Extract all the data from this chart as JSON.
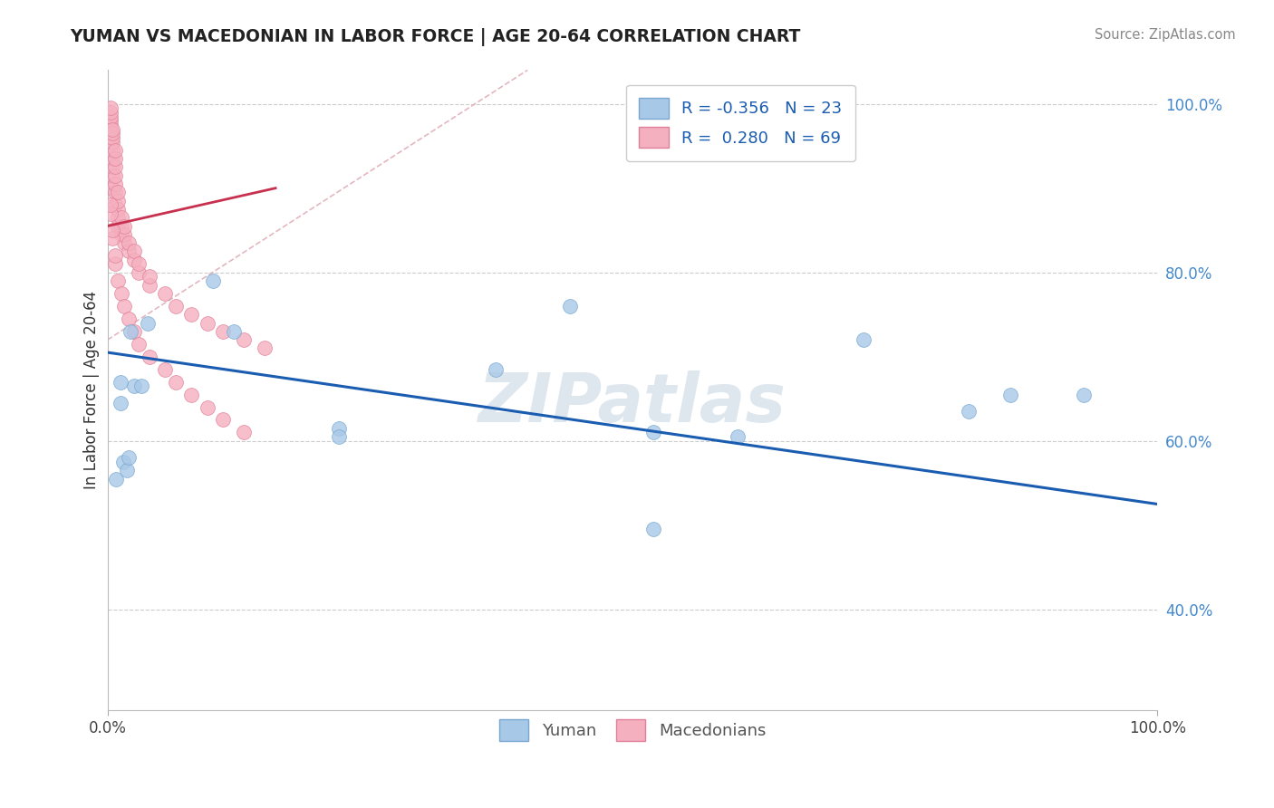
{
  "title": "YUMAN VS MACEDONIAN IN LABOR FORCE | AGE 20-64 CORRELATION CHART",
  "source": "Source: ZipAtlas.com",
  "ylabel": "In Labor Force | Age 20-64",
  "xlim": [
    0.0,
    1.0
  ],
  "ylim": [
    0.28,
    1.04
  ],
  "yticks": [
    0.4,
    0.6,
    0.8,
    1.0
  ],
  "ytick_labels": [
    "40.0%",
    "60.0%",
    "80.0%",
    "100.0%"
  ],
  "watermark": "ZIPatlas",
  "legend_r_yuman": "-0.356",
  "legend_n_yuman": "23",
  "legend_r_mac": "0.280",
  "legend_n_mac": "69",
  "yuman_color": "#a8c8e8",
  "mac_color": "#f5b0c0",
  "yuman_edge": "#78a8d0",
  "mac_edge": "#e08098",
  "blue_line_color": "#1a5cb0",
  "red_line_color": "#c83050",
  "diag_line_color": "#e0b0b8",
  "blue_line_x": [
    0.0,
    1.0
  ],
  "blue_line_y": [
    0.705,
    0.525
  ],
  "red_line_x": [
    0.0,
    0.16
  ],
  "red_line_y": [
    0.855,
    0.9
  ],
  "diag_line_x": [
    0.0,
    0.4
  ],
  "diag_line_y": [
    0.72,
    1.04
  ],
  "yuman_x": [
    0.012,
    0.012,
    0.022,
    0.025,
    0.032,
    0.038,
    0.1,
    0.12,
    0.22,
    0.22,
    0.37,
    0.44,
    0.52,
    0.52,
    0.6,
    0.72,
    0.82,
    0.86,
    0.93,
    0.008,
    0.015,
    0.018,
    0.02
  ],
  "yuman_y": [
    0.67,
    0.645,
    0.73,
    0.665,
    0.665,
    0.74,
    0.79,
    0.73,
    0.615,
    0.605,
    0.685,
    0.76,
    0.61,
    0.495,
    0.605,
    0.72,
    0.635,
    0.655,
    0.655,
    0.555,
    0.575,
    0.565,
    0.58
  ],
  "mac_x": [
    0.003,
    0.003,
    0.003,
    0.003,
    0.003,
    0.003,
    0.003,
    0.003,
    0.005,
    0.005,
    0.005,
    0.005,
    0.005,
    0.005,
    0.005,
    0.005,
    0.005,
    0.007,
    0.007,
    0.007,
    0.007,
    0.007,
    0.007,
    0.007,
    0.01,
    0.01,
    0.01,
    0.01,
    0.01,
    0.013,
    0.013,
    0.013,
    0.016,
    0.016,
    0.016,
    0.02,
    0.02,
    0.025,
    0.025,
    0.03,
    0.03,
    0.04,
    0.04,
    0.055,
    0.065,
    0.08,
    0.095,
    0.11,
    0.13,
    0.15,
    0.003,
    0.003,
    0.005,
    0.005,
    0.007,
    0.007,
    0.01,
    0.013,
    0.016,
    0.02,
    0.025,
    0.03,
    0.04,
    0.055,
    0.065,
    0.08,
    0.095,
    0.11,
    0.13
  ],
  "mac_y": [
    0.96,
    0.965,
    0.97,
    0.975,
    0.98,
    0.985,
    0.99,
    0.995,
    0.9,
    0.915,
    0.925,
    0.935,
    0.945,
    0.955,
    0.96,
    0.965,
    0.97,
    0.88,
    0.895,
    0.905,
    0.915,
    0.925,
    0.935,
    0.945,
    0.855,
    0.865,
    0.875,
    0.885,
    0.895,
    0.845,
    0.855,
    0.865,
    0.835,
    0.845,
    0.855,
    0.825,
    0.835,
    0.815,
    0.825,
    0.8,
    0.81,
    0.785,
    0.795,
    0.775,
    0.76,
    0.75,
    0.74,
    0.73,
    0.72,
    0.71,
    0.87,
    0.88,
    0.84,
    0.85,
    0.81,
    0.82,
    0.79,
    0.775,
    0.76,
    0.745,
    0.73,
    0.715,
    0.7,
    0.685,
    0.67,
    0.655,
    0.64,
    0.625,
    0.61
  ]
}
